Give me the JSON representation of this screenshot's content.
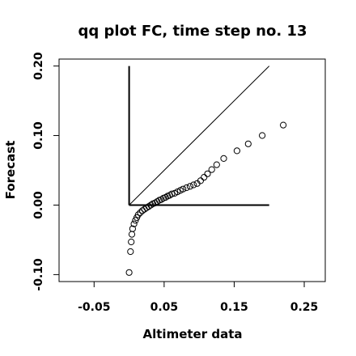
{
  "chart_data": {
    "type": "scatter",
    "title": "qq plot FC, time step no. 13",
    "xlabel": "Altimeter data",
    "ylabel": "Forecast",
    "xlim": [
      -0.1,
      0.28
    ],
    "ylim": [
      -0.11,
      0.21
    ],
    "xticks": [
      {
        "value": -0.05,
        "label": "-0.05"
      },
      {
        "value": 0.05,
        "label": "0.05"
      },
      {
        "value": 0.15,
        "label": "0.15"
      },
      {
        "value": 0.25,
        "label": "0.25"
      }
    ],
    "yticks": [
      {
        "value": -0.1,
        "label": "-0.10"
      },
      {
        "value": 0.0,
        "label": "0.00"
      },
      {
        "value": 0.1,
        "label": "0.10"
      },
      {
        "value": 0.2,
        "label": "0.20"
      }
    ],
    "grid": false,
    "legend": "none",
    "reference_lines": [
      {
        "name": "identity",
        "x": [
          0,
          0.2
        ],
        "y": [
          0,
          0.2
        ]
      },
      {
        "name": "horizontal-zero",
        "x": [
          0,
          0.2
        ],
        "y": [
          0,
          0
        ]
      },
      {
        "name": "vertical-zero",
        "x": [
          0,
          0
        ],
        "y": [
          0,
          0.2
        ]
      }
    ],
    "points": [
      {
        "x": 0.0,
        "y": -0.097
      },
      {
        "x": 0.002,
        "y": -0.067
      },
      {
        "x": 0.003,
        "y": -0.053
      },
      {
        "x": 0.004,
        "y": -0.042
      },
      {
        "x": 0.005,
        "y": -0.034
      },
      {
        "x": 0.007,
        "y": -0.027
      },
      {
        "x": 0.009,
        "y": -0.022
      },
      {
        "x": 0.011,
        "y": -0.018
      },
      {
        "x": 0.013,
        "y": -0.014
      },
      {
        "x": 0.016,
        "y": -0.011
      },
      {
        "x": 0.019,
        "y": -0.008
      },
      {
        "x": 0.022,
        "y": -0.006
      },
      {
        "x": 0.025,
        "y": -0.004
      },
      {
        "x": 0.028,
        "y": -0.002
      },
      {
        "x": 0.031,
        "y": 0.0
      },
      {
        "x": 0.034,
        "y": 0.002
      },
      {
        "x": 0.037,
        "y": 0.003
      },
      {
        "x": 0.04,
        "y": 0.005
      },
      {
        "x": 0.043,
        "y": 0.007
      },
      {
        "x": 0.046,
        "y": 0.008
      },
      {
        "x": 0.049,
        "y": 0.01
      },
      {
        "x": 0.052,
        "y": 0.011
      },
      {
        "x": 0.055,
        "y": 0.013
      },
      {
        "x": 0.058,
        "y": 0.014
      },
      {
        "x": 0.061,
        "y": 0.016
      },
      {
        "x": 0.065,
        "y": 0.017
      },
      {
        "x": 0.069,
        "y": 0.019
      },
      {
        "x": 0.073,
        "y": 0.021
      },
      {
        "x": 0.077,
        "y": 0.023
      },
      {
        "x": 0.082,
        "y": 0.025
      },
      {
        "x": 0.087,
        "y": 0.027
      },
      {
        "x": 0.092,
        "y": 0.029
      },
      {
        "x": 0.097,
        "y": 0.031
      },
      {
        "x": 0.102,
        "y": 0.035
      },
      {
        "x": 0.107,
        "y": 0.04
      },
      {
        "x": 0.112,
        "y": 0.045
      },
      {
        "x": 0.118,
        "y": 0.051
      },
      {
        "x": 0.125,
        "y": 0.058
      },
      {
        "x": 0.135,
        "y": 0.067
      },
      {
        "x": 0.154,
        "y": 0.078
      },
      {
        "x": 0.17,
        "y": 0.088
      },
      {
        "x": 0.19,
        "y": 0.1
      },
      {
        "x": 0.22,
        "y": 0.115
      }
    ]
  }
}
